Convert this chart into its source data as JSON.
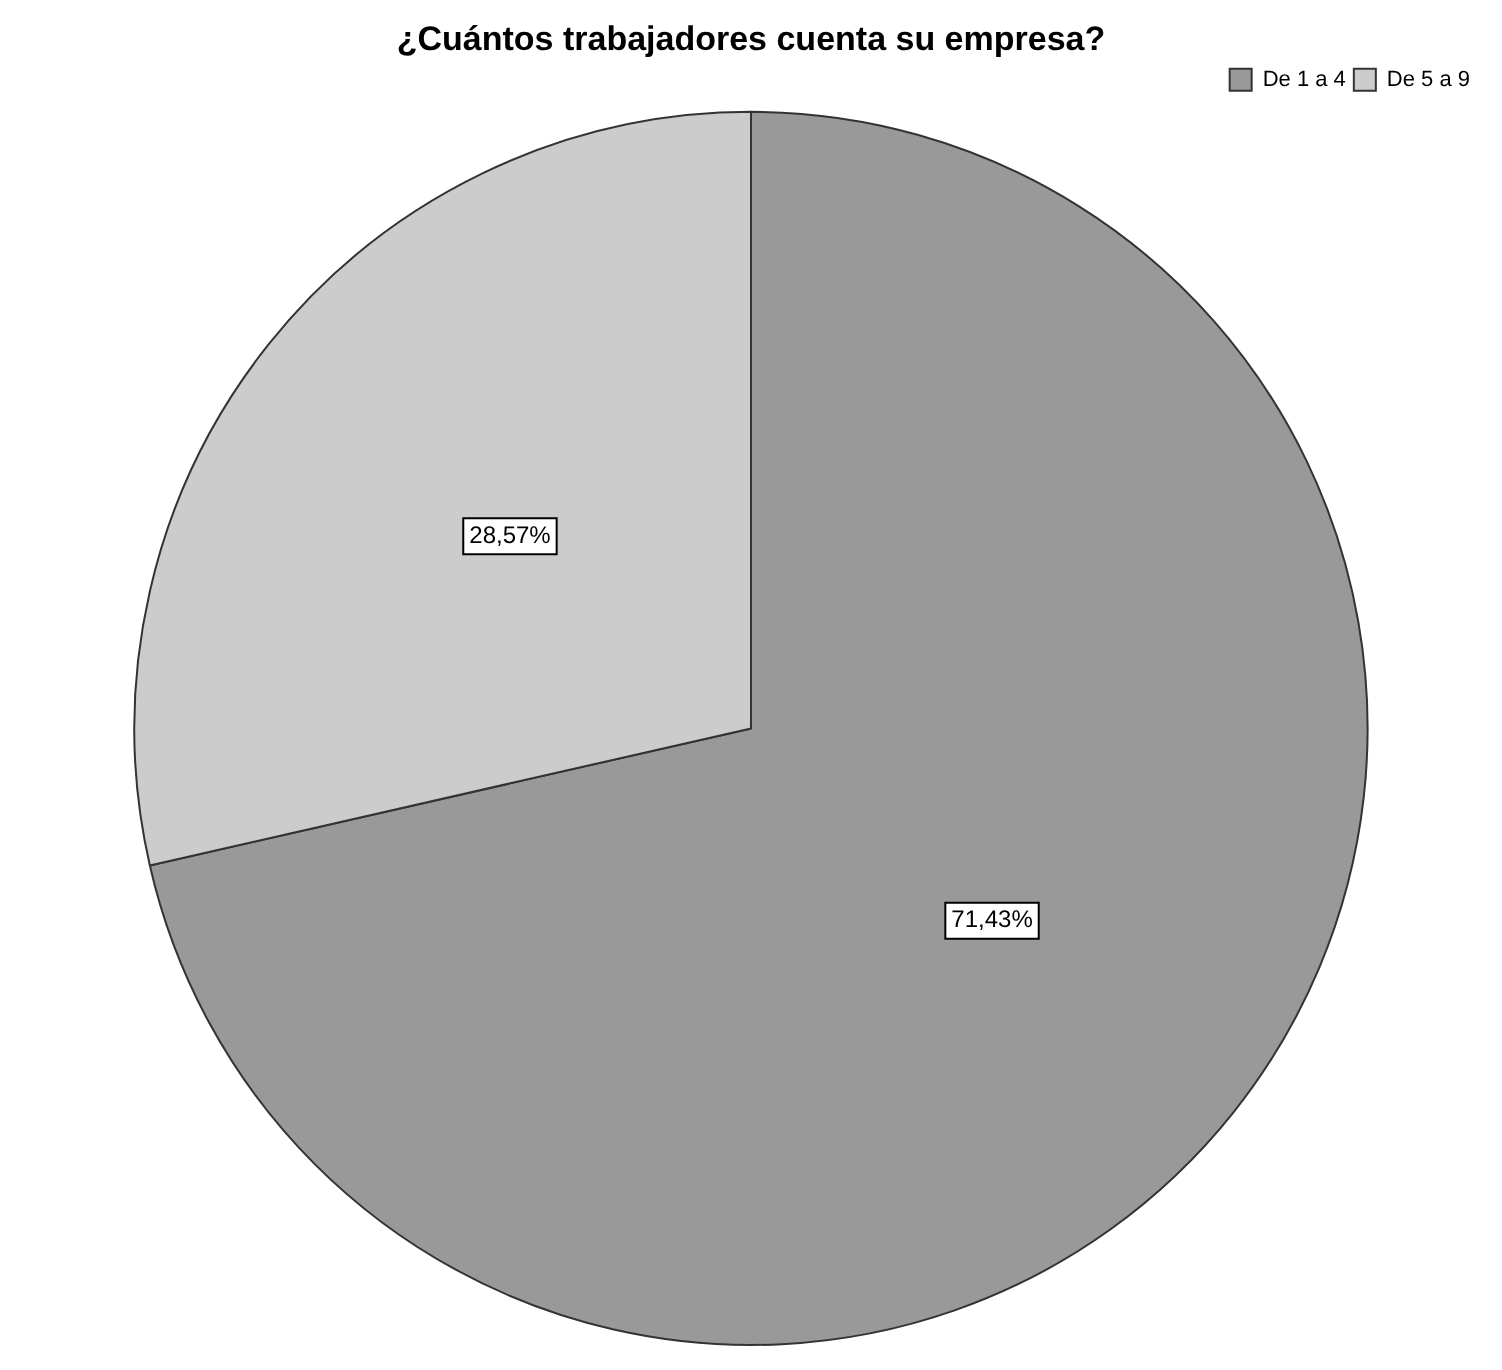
{
  "chart_data": {
    "type": "pie",
    "title": "¿Cuántos trabajadores cuenta su empresa?",
    "categories": [
      "De 1 a 4",
      "De 5 a 9"
    ],
    "values": [
      71.43,
      28.57
    ],
    "colors": [
      "#999999",
      "#cccccc"
    ],
    "value_labels": [
      "71,43%",
      "28,57%"
    ],
    "legend": "top right"
  }
}
